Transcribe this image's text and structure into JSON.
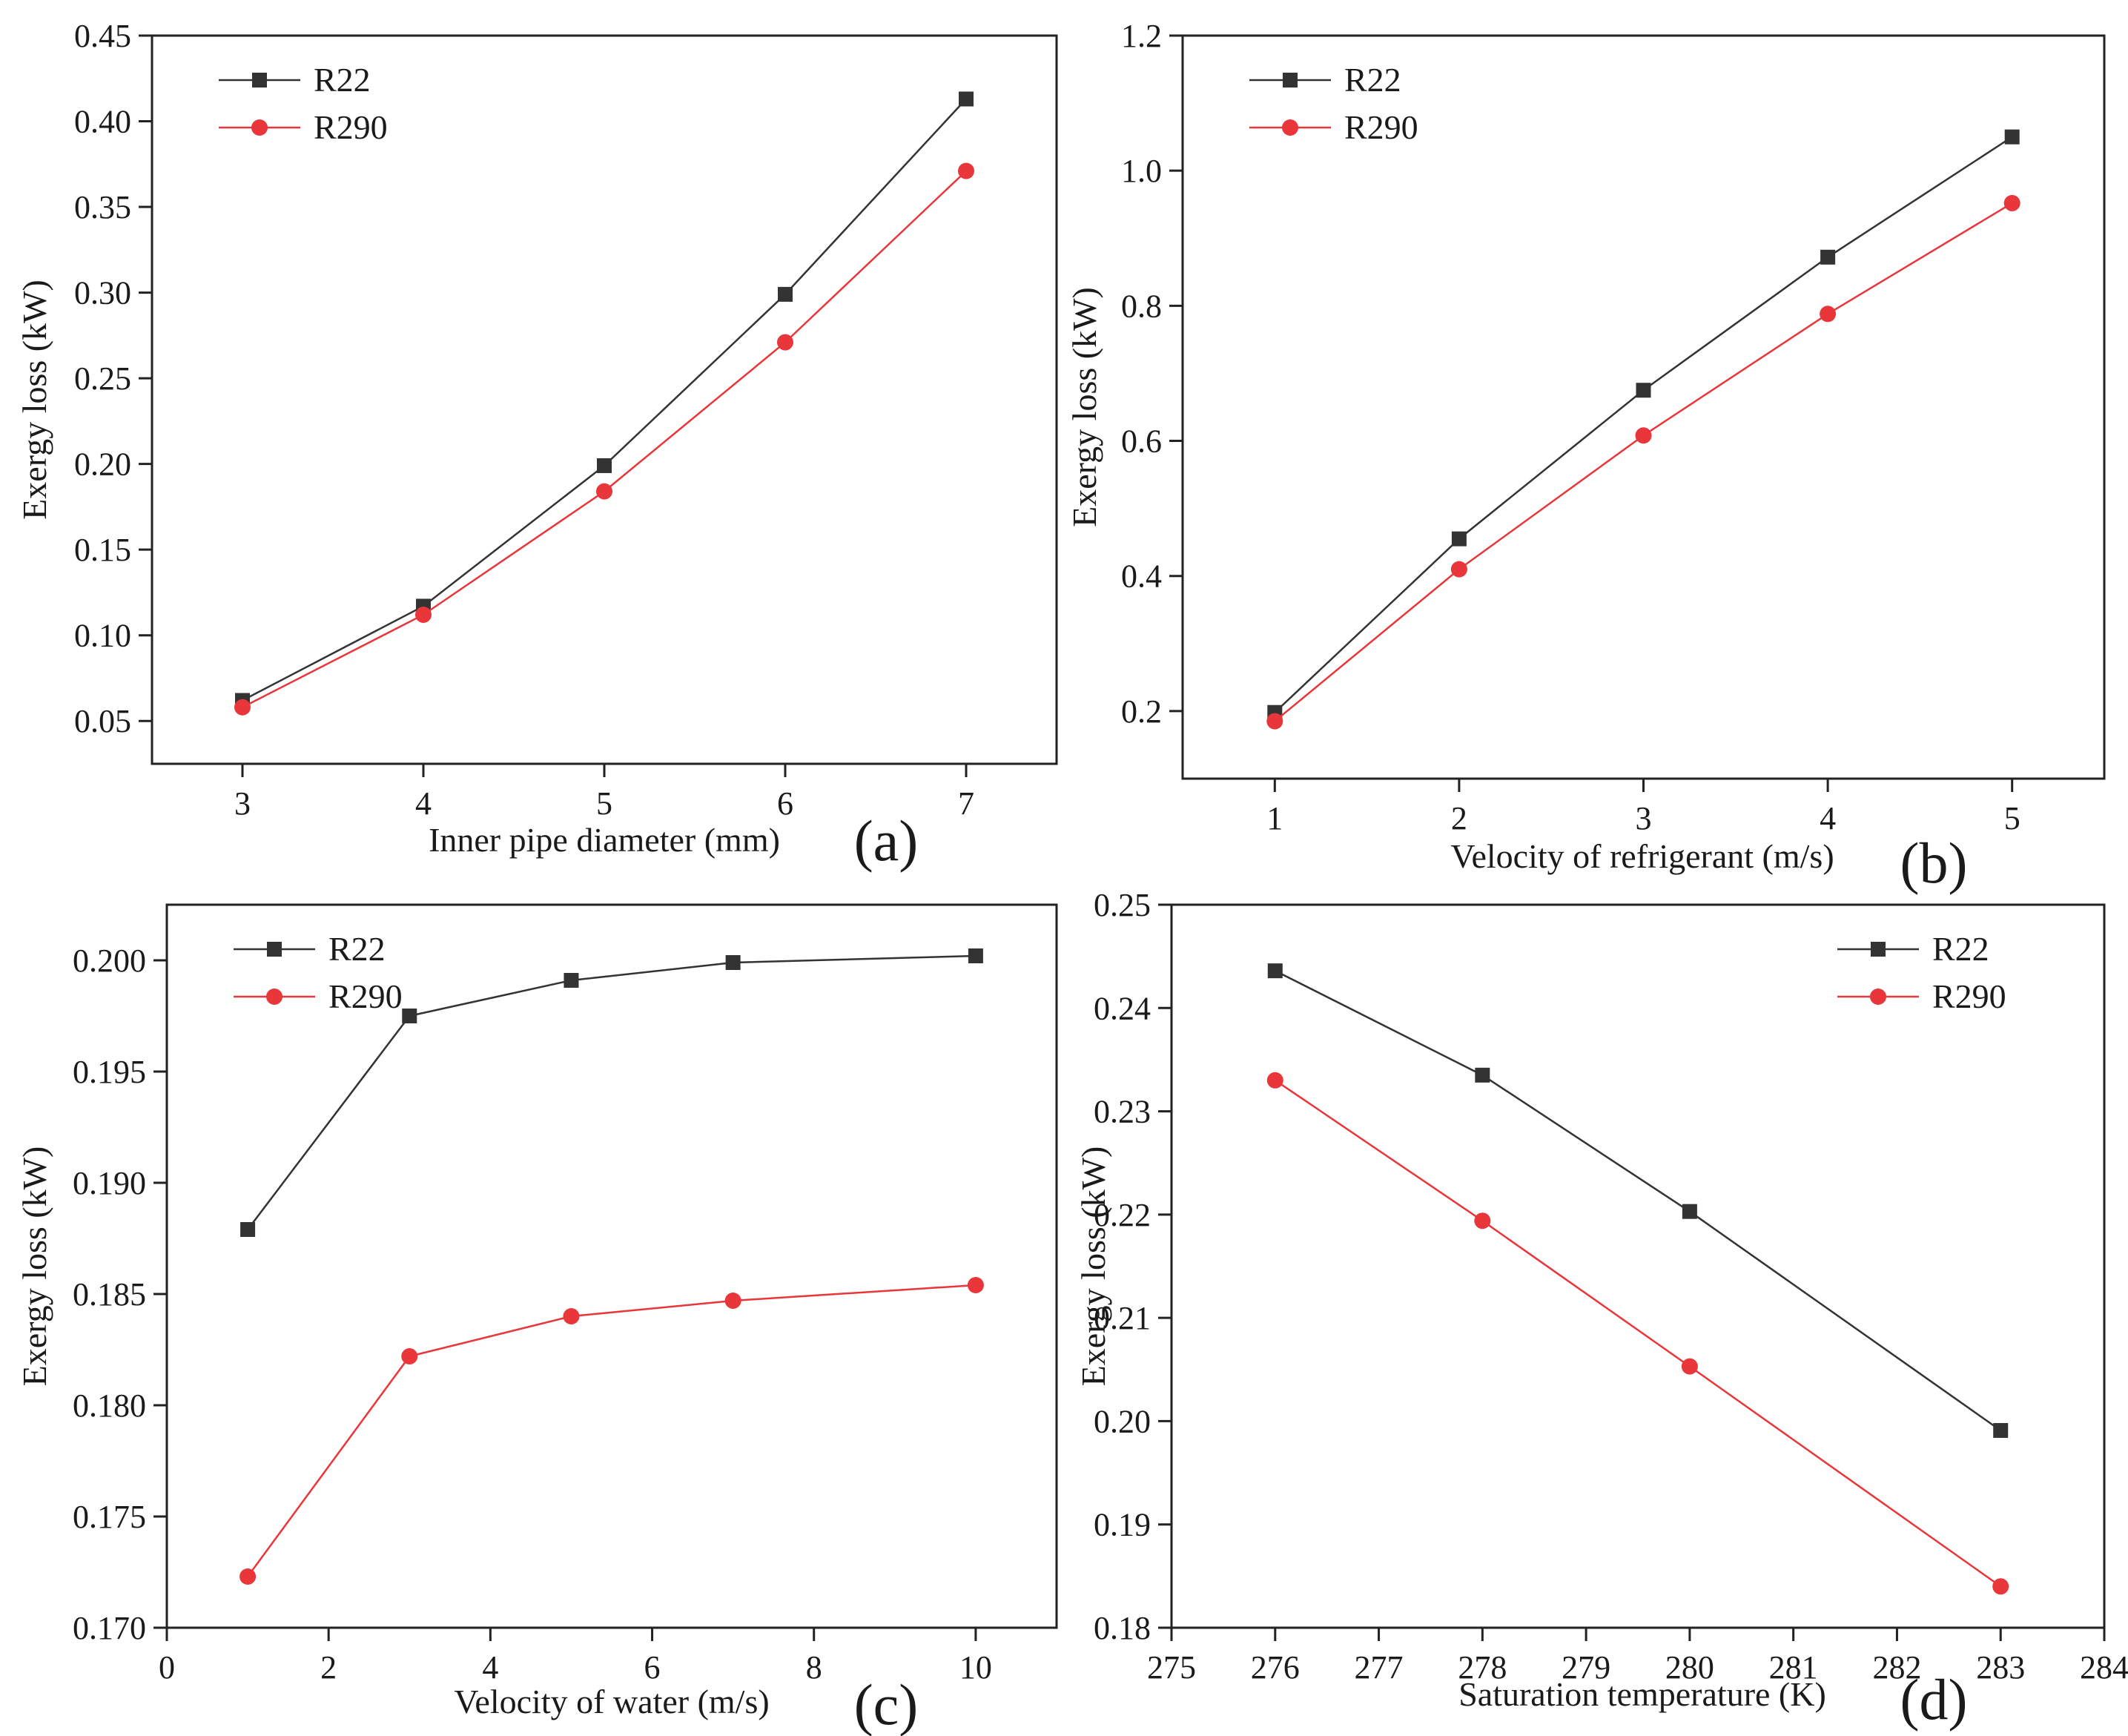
{
  "chart_data": [
    {
      "id": "a",
      "type": "line",
      "panel_label": "(a)",
      "xlabel": "Inner pipe diameter (mm)",
      "ylabel": "Exergy loss (kW)",
      "xlim": [
        2.5,
        7.5
      ],
      "ylim": [
        0.025,
        0.45
      ],
      "xticks": [
        3,
        4,
        5,
        6,
        7
      ],
      "xtick_labels": [
        "3",
        "4",
        "5",
        "6",
        "7"
      ],
      "yticks": [
        0.05,
        0.1,
        0.15,
        0.2,
        0.25,
        0.3,
        0.35,
        0.4,
        0.45
      ],
      "ytick_labels": [
        "0.05",
        "0.10",
        "0.15",
        "0.20",
        "0.25",
        "0.30",
        "0.35",
        "0.40",
        "0.45"
      ],
      "legend_position": "top-left",
      "series": [
        {
          "name": "R22",
          "marker": "square",
          "color": "#333333",
          "x": [
            3,
            4,
            5,
            6,
            7
          ],
          "y": [
            0.062,
            0.117,
            0.199,
            0.299,
            0.413
          ]
        },
        {
          "name": "R290",
          "marker": "circle",
          "color": "#e8363a",
          "x": [
            3,
            4,
            5,
            6,
            7
          ],
          "y": [
            0.058,
            0.112,
            0.184,
            0.271,
            0.371
          ]
        }
      ]
    },
    {
      "id": "b",
      "type": "line",
      "panel_label": "(b)",
      "xlabel": "Velocity of refrigerant (m/s)",
      "ylabel": "Exergy loss (kW)",
      "xlim": [
        0.5,
        5.5
      ],
      "ylim": [
        0.1,
        1.2
      ],
      "xticks": [
        1,
        2,
        3,
        4,
        5
      ],
      "xtick_labels": [
        "1",
        "2",
        "3",
        "4",
        "5"
      ],
      "yticks": [
        0.2,
        0.4,
        0.6,
        0.8,
        1.0,
        1.2
      ],
      "ytick_labels": [
        "0.2",
        "0.4",
        "0.6",
        "0.8",
        "1.0",
        "1.2"
      ],
      "legend_position": "top-left",
      "series": [
        {
          "name": "R22",
          "marker": "square",
          "color": "#333333",
          "x": [
            1,
            2,
            3,
            4,
            5
          ],
          "y": [
            0.198,
            0.455,
            0.675,
            0.872,
            1.05
          ]
        },
        {
          "name": "R290",
          "marker": "circle",
          "color": "#e8363a",
          "x": [
            1,
            2,
            3,
            4,
            5
          ],
          "y": [
            0.185,
            0.41,
            0.608,
            0.788,
            0.952
          ]
        }
      ]
    },
    {
      "id": "c",
      "type": "line",
      "panel_label": "(c)",
      "xlabel": "Velocity of water (m/s)",
      "ylabel": "Exergy loss (kW)",
      "xlim": [
        0,
        11
      ],
      "ylim": [
        0.17,
        0.2025
      ],
      "xticks": [
        0,
        2,
        4,
        6,
        8,
        10
      ],
      "xtick_labels": [
        "0",
        "2",
        "4",
        "6",
        "8",
        "10"
      ],
      "yticks": [
        0.17,
        0.175,
        0.18,
        0.185,
        0.19,
        0.195,
        0.2
      ],
      "ytick_labels": [
        "0.170",
        "0.175",
        "0.180",
        "0.185",
        "0.190",
        "0.195",
        "0.200"
      ],
      "legend_position": "top-left",
      "series": [
        {
          "name": "R22",
          "marker": "square",
          "color": "#333333",
          "x": [
            1,
            3,
            5,
            7,
            10
          ],
          "y": [
            0.1879,
            0.1975,
            0.1991,
            0.1999,
            0.2002
          ]
        },
        {
          "name": "R290",
          "marker": "circle",
          "color": "#e8363a",
          "x": [
            1,
            3,
            5,
            7,
            10
          ],
          "y": [
            0.1723,
            0.1822,
            0.184,
            0.1847,
            0.1854
          ]
        }
      ]
    },
    {
      "id": "d",
      "type": "line",
      "panel_label": "(d)",
      "xlabel": "Saturation temperature (K)",
      "ylabel": "Exergy loss (kW)",
      "xlim": [
        275,
        284
      ],
      "ylim": [
        0.18,
        0.25
      ],
      "xticks": [
        275,
        276,
        277,
        278,
        279,
        280,
        281,
        282,
        283,
        284
      ],
      "xtick_labels": [
        "275",
        "276",
        "277",
        "278",
        "279",
        "280",
        "281",
        "282",
        "283",
        "284"
      ],
      "yticks": [
        0.18,
        0.19,
        0.2,
        0.21,
        0.22,
        0.23,
        0.24,
        0.25
      ],
      "ytick_labels": [
        "0.18",
        "0.19",
        "0.20",
        "0.21",
        "0.22",
        "0.23",
        "0.24",
        "0.25"
      ],
      "legend_position": "top-right",
      "series": [
        {
          "name": "R22",
          "marker": "square",
          "color": "#333333",
          "x": [
            276,
            278,
            280,
            283
          ],
          "y": [
            0.2436,
            0.2335,
            0.2203,
            0.1991
          ]
        },
        {
          "name": "R290",
          "marker": "circle",
          "color": "#e8363a",
          "x": [
            276,
            278,
            280,
            283
          ],
          "y": [
            0.233,
            0.2194,
            0.2053,
            0.184
          ]
        }
      ]
    }
  ]
}
